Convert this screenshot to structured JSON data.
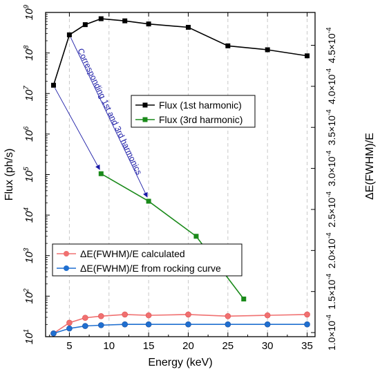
{
  "chart_data": {
    "type": "line",
    "title": "",
    "xlabel": "Energy (keV)",
    "ylabel": "Flux (ph/s)",
    "y2label": "ΔE(FWHM)/E",
    "xlim": [
      2,
      36
    ],
    "ylim": [
      10,
      1000000000
    ],
    "yscale": "log",
    "y2lim": [
      9.5e-05,
      0.00049
    ],
    "x_ticks": [
      5,
      10,
      15,
      20,
      25,
      30,
      35
    ],
    "y_ticks": [
      {
        "value": 10,
        "base": "10",
        "exp": "1"
      },
      {
        "value": 100,
        "base": "10",
        "exp": "2"
      },
      {
        "value": 1000,
        "base": "10",
        "exp": "3"
      },
      {
        "value": 10000,
        "base": "10",
        "exp": "4"
      },
      {
        "value": 100000,
        "base": "10",
        "exp": "5"
      },
      {
        "value": 1000000,
        "base": "10",
        "exp": "6"
      },
      {
        "value": 10000000,
        "base": "10",
        "exp": "7"
      },
      {
        "value": 100000000,
        "base": "10",
        "exp": "8"
      },
      {
        "value": 1000000000,
        "base": "10",
        "exp": "9"
      }
    ],
    "y2_ticks": [
      {
        "value": 0.0001,
        "mant": "1.0×10",
        "exp": "-4"
      },
      {
        "value": 0.00015,
        "mant": "1.5×10",
        "exp": "-4"
      },
      {
        "value": 0.0002,
        "mant": "2.0×10",
        "exp": "-4"
      },
      {
        "value": 0.00025,
        "mant": "2.5×10",
        "exp": "-4"
      },
      {
        "value": 0.0003,
        "mant": "3.0×10",
        "exp": "-4"
      },
      {
        "value": 0.00035,
        "mant": "3.5×10",
        "exp": "-4"
      },
      {
        "value": 0.0004,
        "mant": "4.0×10",
        "exp": "-4"
      },
      {
        "value": 0.00045,
        "mant": "4.5×10",
        "exp": "-4"
      }
    ],
    "grid": "x-dashed",
    "series": [
      {
        "name": "Flux (1st harmonic)",
        "axis": "left",
        "color": "#000000",
        "marker": "square",
        "x": [
          3,
          5,
          7,
          9,
          12,
          15,
          20,
          25,
          30,
          35
        ],
        "y": [
          16000000,
          280000000,
          500000000,
          700000000,
          620000000,
          520000000,
          430000000,
          150000000,
          120000000,
          85000000
        ]
      },
      {
        "name": "Flux (3rd harmonic)",
        "axis": "left",
        "color": "#1a8a1a",
        "marker": "square",
        "x": [
          9,
          15,
          21,
          27
        ],
        "y": [
          105000,
          22000,
          3000,
          85
        ]
      },
      {
        "name": "ΔE(FWHM)/E calculated",
        "axis": "right",
        "color": "#f07070",
        "marker": "circle",
        "x": [
          3,
          5,
          7,
          9,
          12,
          15,
          20,
          25,
          30,
          35
        ],
        "y": [
          9.9e-05,
          0.000112,
          0.000118,
          0.00012,
          0.000122,
          0.000121,
          0.000122,
          0.00012,
          0.000121,
          0.000122
        ]
      },
      {
        "name": "ΔE(FWHM)/E from rocking curve",
        "axis": "right",
        "color": "#1f6fd0",
        "marker": "circle",
        "x": [
          3,
          5,
          7,
          9,
          12,
          15,
          20,
          25,
          30,
          35
        ],
        "y": [
          9.9e-05,
          0.000105,
          0.000108,
          0.000109,
          0.00011,
          0.00011,
          0.00011,
          0.00011,
          0.00011,
          0.00011
        ]
      }
    ],
    "legend_top": {
      "position": "center",
      "entries": [
        "Flux (1st harmonic)",
        "Flux (3rd harmonic)"
      ]
    },
    "legend_bottom": {
      "position": "bottom-left",
      "entries": [
        "ΔE(FWHM)/E calculated",
        "ΔE(FWHM)/E from rocking curve"
      ]
    },
    "annotation": {
      "text": "Corresponding 1st and 3rd harmonics",
      "color": "#1a1aa6",
      "arrows": [
        {
          "from_x": 3,
          "from_y": 16000000,
          "to_x": 9,
          "to_y": 105000
        },
        {
          "from_x": 5,
          "from_y": 280000000,
          "to_x": 15,
          "to_y": 22000
        }
      ]
    }
  }
}
